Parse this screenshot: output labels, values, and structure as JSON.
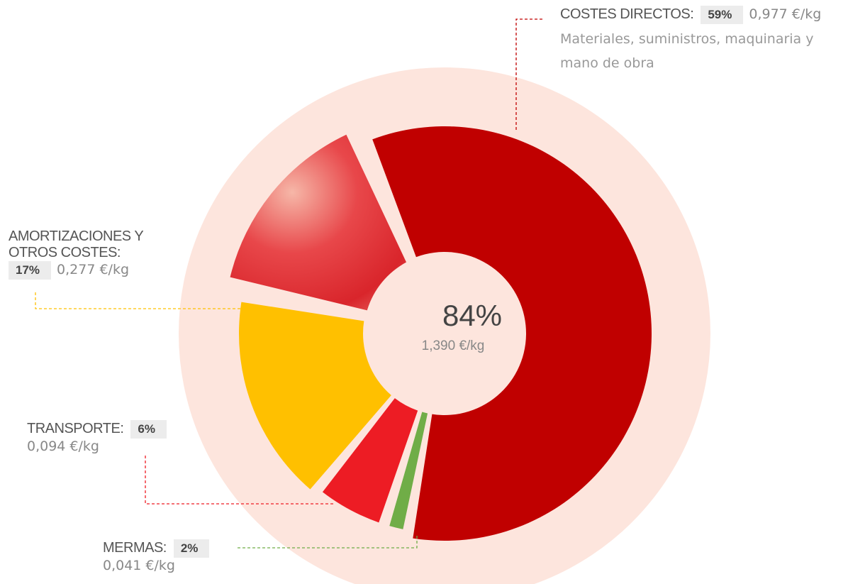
{
  "chart_data": {
    "type": "donut",
    "categories": [
      "COSTES DIRECTOS:",
      "MERMAS:",
      "TRANSPORTE:",
      "AMORTIZACIONES Y OTROS COSTES:"
    ],
    "values": [
      59,
      2,
      6,
      17
    ],
    "value_labels": [
      "59%",
      "2%",
      "6%",
      "17%"
    ],
    "per_kg": [
      "0,977 €/kg",
      "0,041 €/kg",
      "0,094 €/kg",
      "0,277 €/kg"
    ],
    "colors": [
      "#c00000",
      "#70ad47",
      "#ed1c24",
      "#ffc000"
    ],
    "description": "Materiales, suministros, maquinaria y mano de obra",
    "total_label": "84%",
    "total_per_kg": "1,390 €/kg"
  }
}
